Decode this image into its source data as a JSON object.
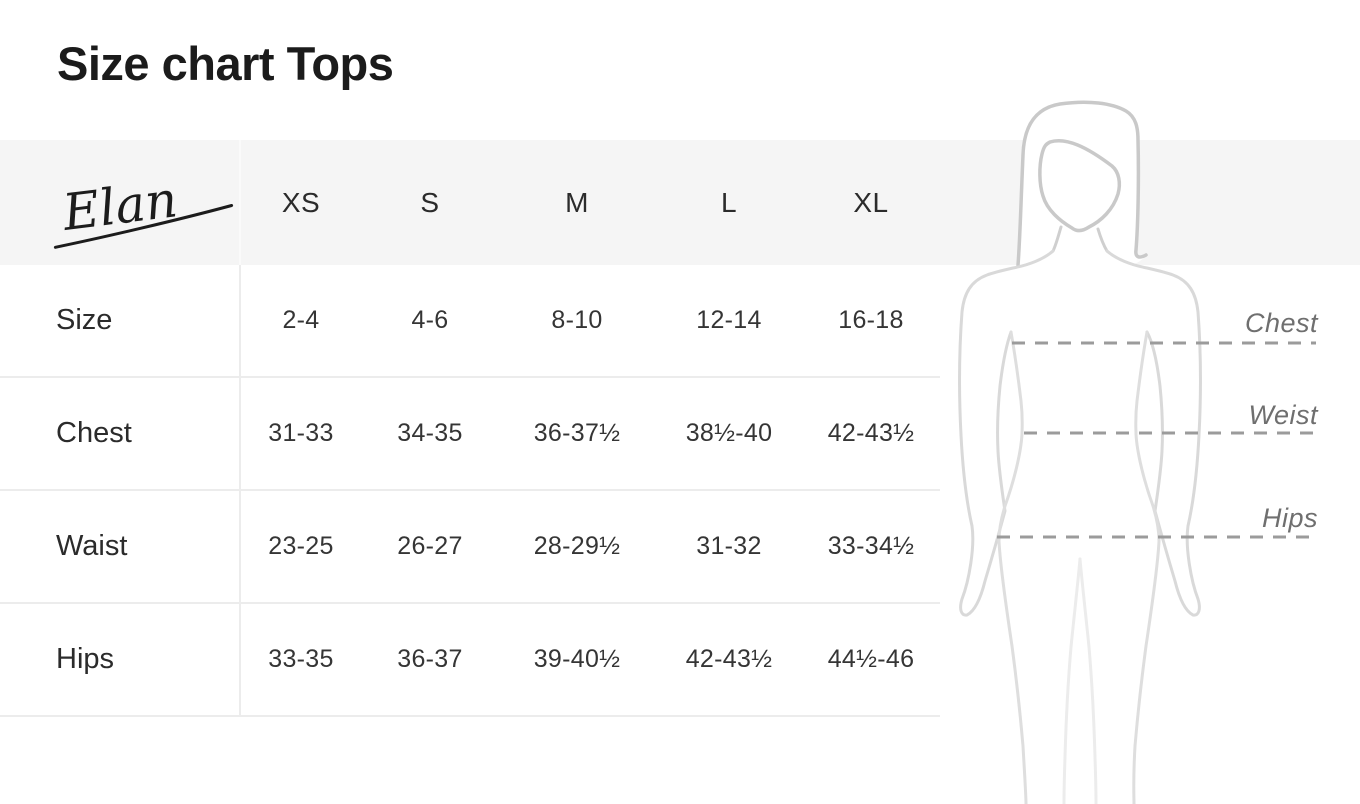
{
  "page": {
    "title": "Size chart Tops"
  },
  "brand": {
    "logo_text": "Elan"
  },
  "table": {
    "columns": [
      "XS",
      "S",
      "M",
      "L",
      "XL"
    ],
    "rows": [
      {
        "label": "Size",
        "values": [
          "2-4",
          "4-6",
          "8-10",
          "12-14",
          "16-18"
        ]
      },
      {
        "label": "Chest",
        "values": [
          "31-33",
          "34-35",
          "36-37½",
          "38½-40",
          "42-43½"
        ]
      },
      {
        "label": "Waist",
        "values": [
          "23-25",
          "26-27",
          "28-29½",
          "31-32",
          "33-34½"
        ]
      },
      {
        "label": "Hips",
        "values": [
          "33-35",
          "36-37",
          "39-40½",
          "42-43½",
          "44½-46"
        ]
      }
    ]
  },
  "figure": {
    "labels": {
      "chest": "Chest",
      "waist": "Weist",
      "hips": "Hips"
    }
  },
  "colors": {
    "title_text": "#1b1b1b",
    "table_text": "#2b2b2b",
    "header_band": "#f5f5f5",
    "row_border": "#ececec",
    "dash_line": "#9b9b9b",
    "measure_label": "#6f6f6f",
    "figure_head_stroke": "#c9c9c9",
    "figure_body_stroke": "#d9d9d9",
    "figure_leg_stroke": "#ececec"
  }
}
